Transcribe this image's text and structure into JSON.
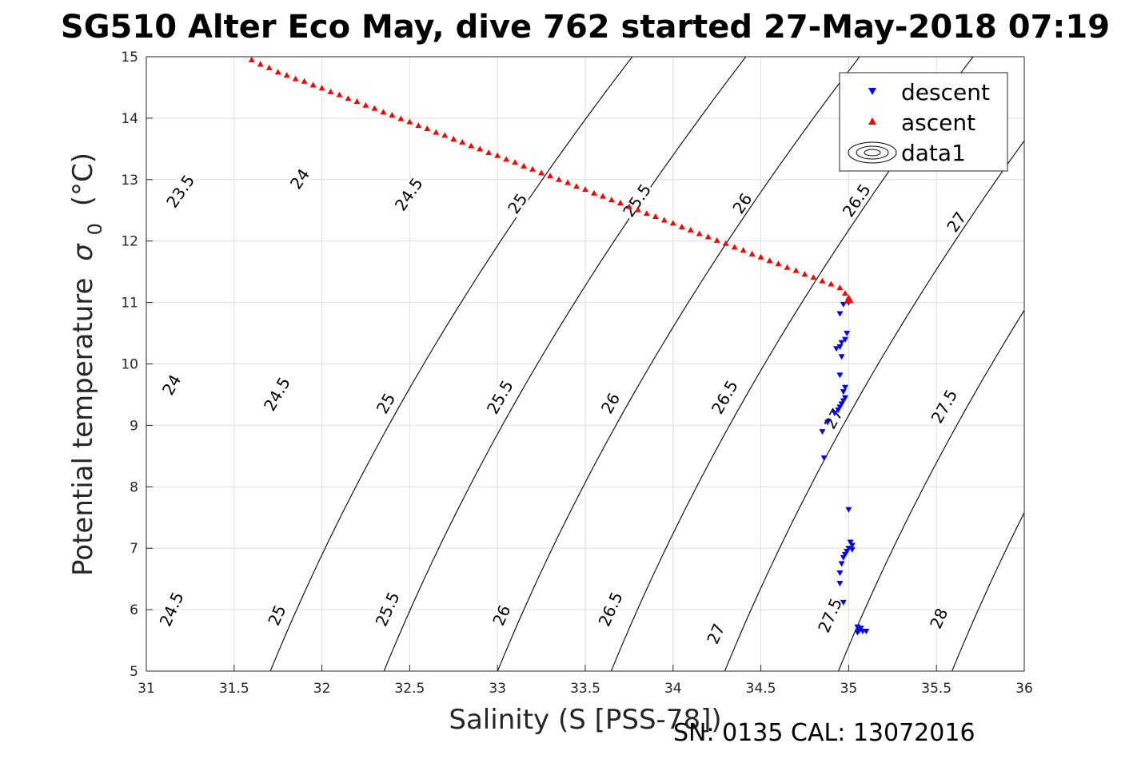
{
  "chart_data": {
    "type": "scatter",
    "title": "SG510 Alter Eco May, dive 762 started 27-May-2018 07:19",
    "xlabel": "Salinity (S [PSS-78])",
    "ylabel_main": "Potential temperature",
    "ylabel_symbol": "σ",
    "ylabel_sub": "0",
    "ylabel_unit": "(°C)",
    "footer": "SN: 0135  CAL: 13072016",
    "xlim": [
      31,
      36
    ],
    "ylim": [
      5,
      15
    ],
    "x_ticks": [
      "31",
      "31.5",
      "32",
      "32.5",
      "33",
      "33.5",
      "34",
      "34.5",
      "35",
      "35.5",
      "36"
    ],
    "y_ticks": [
      "5",
      "6",
      "7",
      "8",
      "9",
      "10",
      "11",
      "12",
      "13",
      "14",
      "15"
    ],
    "grid": true,
    "legend_position": "top-right",
    "legend": [
      "descent",
      "ascent",
      "data1"
    ],
    "colors": {
      "descent": "#0000ff",
      "ascent": "#ff0000",
      "contour": "#000000"
    },
    "contour_levels": [
      "23.5",
      "24",
      "24.5",
      "25",
      "25.5",
      "26",
      "26.5",
      "27",
      "27.5",
      "28"
    ],
    "contour_labels": [
      {
        "text": "23.5",
        "s": 31.2,
        "t": 12.8
      },
      {
        "text": "24",
        "s": 31.88,
        "t": 13.0
      },
      {
        "text": "24.5",
        "s": 32.5,
        "t": 12.75
      },
      {
        "text": "25",
        "s": 33.12,
        "t": 12.6
      },
      {
        "text": "25.5",
        "s": 33.8,
        "t": 12.65
      },
      {
        "text": "26",
        "s": 34.4,
        "t": 12.6
      },
      {
        "text": "26.5",
        "s": 35.05,
        "t": 12.65
      },
      {
        "text": "27",
        "s": 35.62,
        "t": 12.3
      },
      {
        "text": "24",
        "s": 31.15,
        "t": 9.65
      },
      {
        "text": "24.5",
        "s": 31.75,
        "t": 9.5
      },
      {
        "text": "25",
        "s": 32.37,
        "t": 9.35
      },
      {
        "text": "25.5",
        "s": 33.02,
        "t": 9.45
      },
      {
        "text": "26",
        "s": 33.65,
        "t": 9.35
      },
      {
        "text": "26.5",
        "s": 34.3,
        "t": 9.45
      },
      {
        "text": "27",
        "s": 34.92,
        "t": 9.1
      },
      {
        "text": "27.5",
        "s": 35.55,
        "t": 9.3
      },
      {
        "text": "24.5",
        "s": 31.15,
        "t": 6.0
      },
      {
        "text": "25",
        "s": 31.75,
        "t": 5.9
      },
      {
        "text": "25.5",
        "s": 32.38,
        "t": 6.0
      },
      {
        "text": "26",
        "s": 33.03,
        "t": 5.9
      },
      {
        "text": "26.5",
        "s": 33.65,
        "t": 6.0
      },
      {
        "text": "27",
        "s": 34.25,
        "t": 5.6
      },
      {
        "text": "27.5",
        "s": 34.9,
        "t": 5.9
      },
      {
        "text": "28",
        "s": 35.52,
        "t": 5.85
      }
    ],
    "series": [
      {
        "name": "descent",
        "marker": "triangle-down",
        "points": [
          [
            35.0,
            11.0
          ],
          [
            34.97,
            10.97
          ],
          [
            34.95,
            10.82
          ],
          [
            34.99,
            10.5
          ],
          [
            34.98,
            10.4
          ],
          [
            34.96,
            10.35
          ],
          [
            34.95,
            10.28
          ],
          [
            34.93,
            10.25
          ],
          [
            34.96,
            10.12
          ],
          [
            34.95,
            9.82
          ],
          [
            34.98,
            9.62
          ],
          [
            34.97,
            9.55
          ],
          [
            34.98,
            9.45
          ],
          [
            34.97,
            9.4
          ],
          [
            34.96,
            9.35
          ],
          [
            34.95,
            9.3
          ],
          [
            34.94,
            9.25
          ],
          [
            34.92,
            9.2
          ],
          [
            34.88,
            9.05
          ],
          [
            34.85,
            8.9
          ],
          [
            34.86,
            8.47
          ],
          [
            35.0,
            7.63
          ],
          [
            35.01,
            7.1
          ],
          [
            35.02,
            7.05
          ],
          [
            35.0,
            7.0
          ],
          [
            35.02,
            6.98
          ],
          [
            34.99,
            6.95
          ],
          [
            34.98,
            6.9
          ],
          [
            34.97,
            6.85
          ],
          [
            34.96,
            6.75
          ],
          [
            34.95,
            6.6
          ],
          [
            34.95,
            6.43
          ],
          [
            34.97,
            6.12
          ],
          [
            35.05,
            5.72
          ],
          [
            35.07,
            5.7
          ],
          [
            35.06,
            5.66
          ],
          [
            35.08,
            5.65
          ],
          [
            35.1,
            5.65
          ],
          [
            35.05,
            5.63
          ]
        ]
      },
      {
        "name": "ascent",
        "marker": "triangle-up",
        "points": [
          [
            31.6,
            14.95
          ],
          [
            31.65,
            14.88
          ],
          [
            31.7,
            14.82
          ],
          [
            31.75,
            14.75
          ],
          [
            31.8,
            14.7
          ],
          [
            31.85,
            14.64
          ],
          [
            31.9,
            14.6
          ],
          [
            31.95,
            14.54
          ],
          [
            32.0,
            14.49
          ],
          [
            32.05,
            14.43
          ],
          [
            32.1,
            14.38
          ],
          [
            32.15,
            14.32
          ],
          [
            32.2,
            14.27
          ],
          [
            32.25,
            14.21
          ],
          [
            32.3,
            14.16
          ],
          [
            32.35,
            14.1
          ],
          [
            32.4,
            14.05
          ],
          [
            32.45,
            13.99
          ],
          [
            32.5,
            13.94
          ],
          [
            32.55,
            13.88
          ],
          [
            32.6,
            13.83
          ],
          [
            32.65,
            13.77
          ],
          [
            32.7,
            13.72
          ],
          [
            32.75,
            13.66
          ],
          [
            32.8,
            13.61
          ],
          [
            32.85,
            13.55
          ],
          [
            32.9,
            13.5
          ],
          [
            32.95,
            13.44
          ],
          [
            33.0,
            13.39
          ],
          [
            33.05,
            13.33
          ],
          [
            33.1,
            13.28
          ],
          [
            33.15,
            13.22
          ],
          [
            33.2,
            13.17
          ],
          [
            33.25,
            13.11
          ],
          [
            33.3,
            13.06
          ],
          [
            33.35,
            13.0
          ],
          [
            33.4,
            12.95
          ],
          [
            33.45,
            12.89
          ],
          [
            33.5,
            12.84
          ],
          [
            33.55,
            12.78
          ],
          [
            33.6,
            12.73
          ],
          [
            33.65,
            12.67
          ],
          [
            33.7,
            12.62
          ],
          [
            33.75,
            12.56
          ],
          [
            33.8,
            12.51
          ],
          [
            33.85,
            12.45
          ],
          [
            33.9,
            12.4
          ],
          [
            33.95,
            12.34
          ],
          [
            34.0,
            12.29
          ],
          [
            34.05,
            12.23
          ],
          [
            34.1,
            12.18
          ],
          [
            34.15,
            12.12
          ],
          [
            34.2,
            12.07
          ],
          [
            34.25,
            12.01
          ],
          [
            34.3,
            11.96
          ],
          [
            34.35,
            11.9
          ],
          [
            34.4,
            11.85
          ],
          [
            34.45,
            11.79
          ],
          [
            34.5,
            11.74
          ],
          [
            34.55,
            11.68
          ],
          [
            34.6,
            11.63
          ],
          [
            34.65,
            11.57
          ],
          [
            34.7,
            11.52
          ],
          [
            34.75,
            11.46
          ],
          [
            34.8,
            11.41
          ],
          [
            34.85,
            11.35
          ],
          [
            34.9,
            11.3
          ],
          [
            34.95,
            11.24
          ],
          [
            34.98,
            11.15
          ],
          [
            35.0,
            11.08
          ],
          [
            35.01,
            11.03
          ],
          [
            34.99,
            11.02
          ]
        ]
      }
    ]
  }
}
